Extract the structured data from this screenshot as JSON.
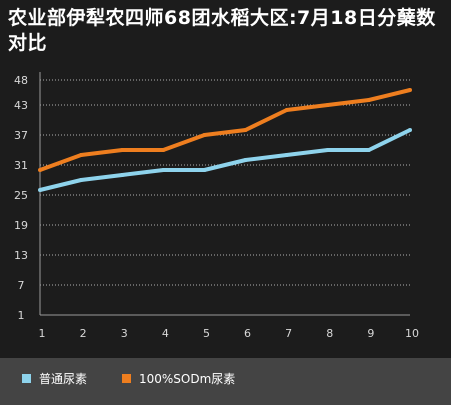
{
  "chart_data": {
    "type": "line",
    "title": "农业部伊犁农四师68团水稻大区:7月18日分蘖数对比",
    "xlabel": "",
    "ylabel": "",
    "x": [
      1,
      2,
      3,
      4,
      5,
      6,
      7,
      8,
      9,
      10
    ],
    "y_ticks": [
      1,
      7,
      13,
      19,
      25,
      31,
      37,
      43,
      48
    ],
    "ylim": [
      1,
      48
    ],
    "grid": true,
    "legend": "bottom",
    "series": [
      {
        "name": "普通尿素",
        "color": "#8ed3ec",
        "values": [
          26,
          28,
          29,
          30,
          30,
          32,
          33,
          34,
          34,
          38
        ]
      },
      {
        "name": "100%SODm尿素",
        "color": "#ee7e1f",
        "values": [
          30,
          33,
          34,
          34,
          37,
          38,
          42,
          43,
          44,
          46
        ]
      }
    ]
  }
}
